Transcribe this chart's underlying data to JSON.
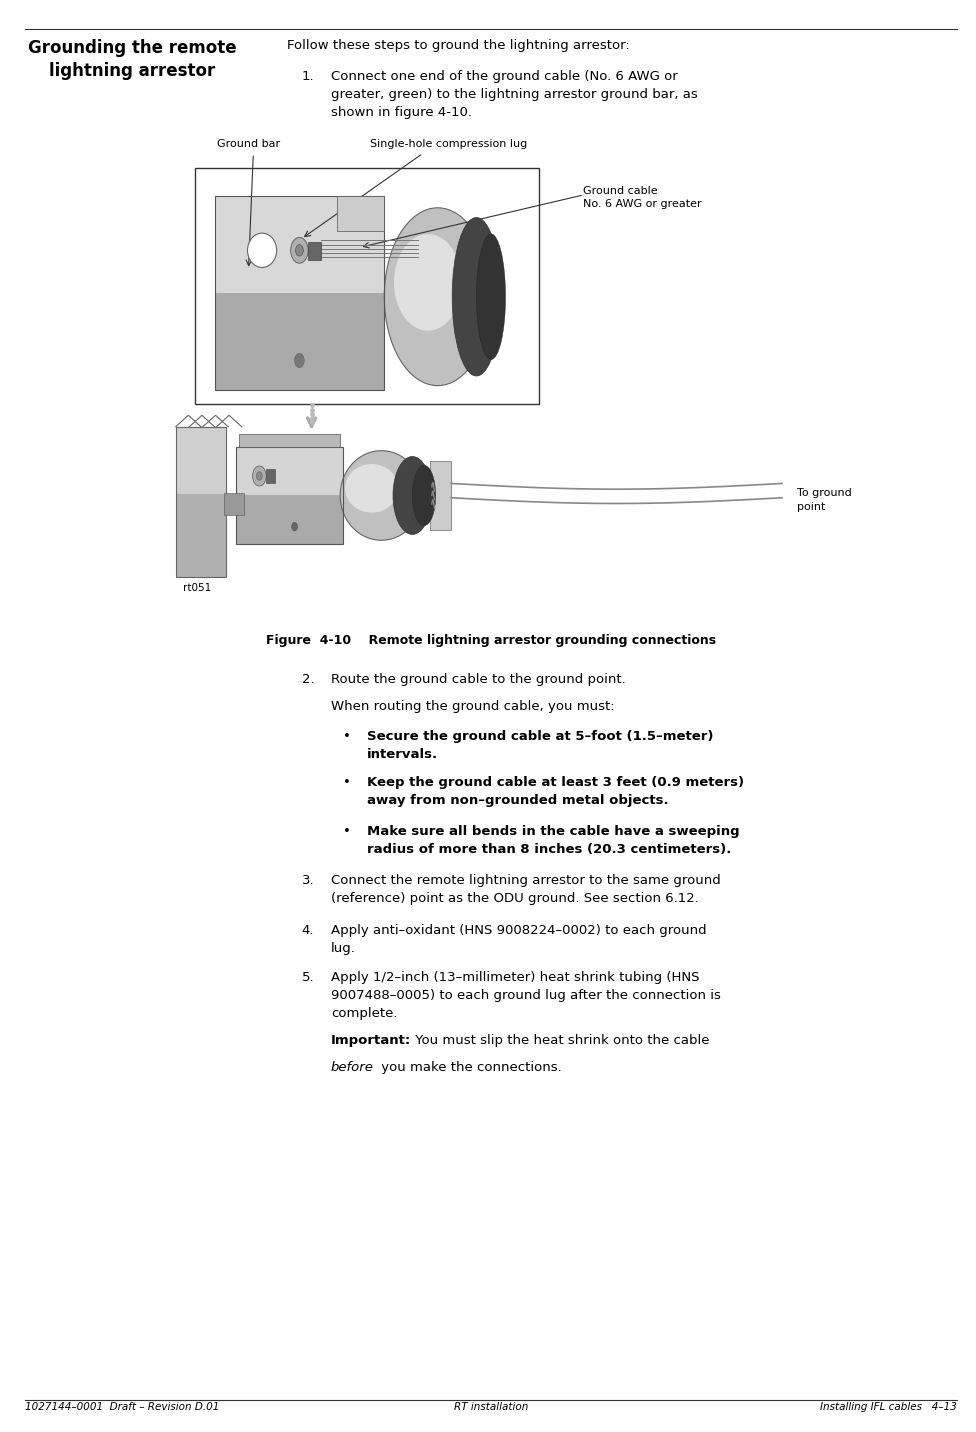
{
  "page_width": 9.76,
  "page_height": 14.32,
  "bg_color": "#ffffff",
  "text_color": "#000000",
  "sidebar_title_line1": "Grounding the remote",
  "sidebar_title_line2": "lightning arrestor",
  "intro_text": "Follow these steps to ground the lightning arrestor:",
  "step1_text": "Connect one end of the ground cable (No. 6 AWG or\ngreater, green) to the lightning arrestor ground bar, as\nshown in figure 4-10.",
  "fig_caption": "Figure  4-10    Remote lightning arrestor grounding connections",
  "label_ground_bar": "Ground bar",
  "label_compression_lug": "Single-hole compression lug",
  "label_ground_cable": "Ground cable\nNo. 6 AWG or greater",
  "label_to_ground": "To ground\npoint",
  "label_rt051": "rt051",
  "step2_text": "Route the ground cable to the ground point.",
  "step2_subtext": "When routing the ground cable, you must:",
  "bullet1": "Secure the ground cable at 5–foot (1.5–meter)\nintervals.",
  "bullet2": "Keep the ground cable at least 3 feet (0.9 meters)\naway from non–grounded metal objects.",
  "bullet3": "Make sure all bends in the cable have a sweeping\nradius of more than 8 inches (20.3 centimeters).",
  "step3_text": "Connect the remote lightning arrestor to the same ground\n(reference) point as the ODU ground. See section 6.12.",
  "step4_text": "Apply anti–oxidant (HNS 9008224–0002) to each ground\nlug.",
  "step5_text": "Apply 1/2–inch (13–millimeter) heat shrink tubing (HNS\n9007488–0005) to each ground lug after the connection is\ncomplete.",
  "important_label": "Important:",
  "important_text1": " You must slip the heat shrink onto the cable",
  "important_text2": " you make the connections.",
  "important_italic": "before",
  "footer_left": "1027144–0001  Draft – Revision D.01",
  "footer_center": "RT installation",
  "footer_right": "Installing IFL cables   4–13"
}
